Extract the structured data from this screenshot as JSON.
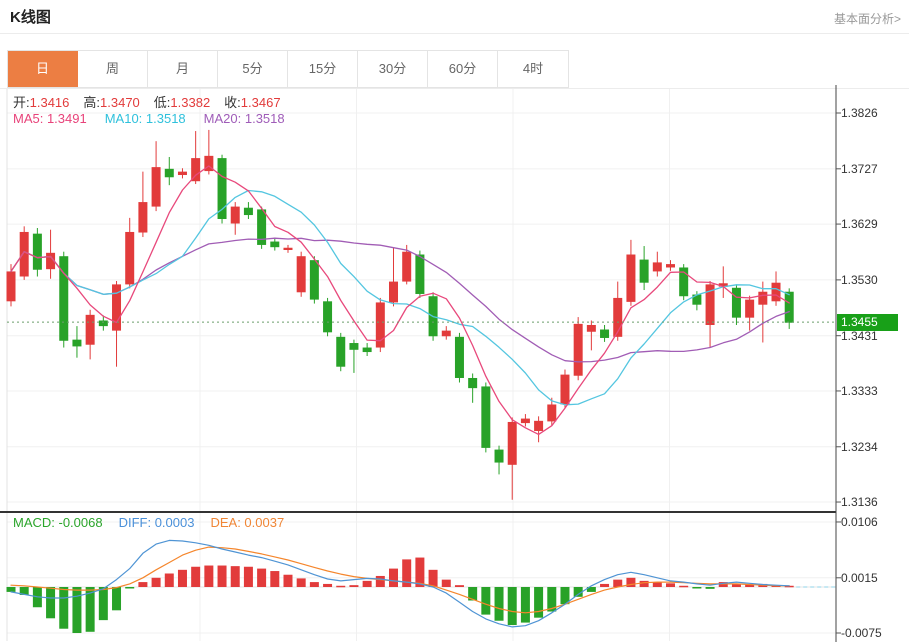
{
  "header": {
    "title": "K线图",
    "link_label": "基本面分析>"
  },
  "tabs": [
    {
      "name": "day",
      "label": "日",
      "active": true
    },
    {
      "name": "week",
      "label": "周",
      "active": false
    },
    {
      "name": "month",
      "label": "月",
      "active": false
    },
    {
      "name": "5min",
      "label": "5分",
      "active": false
    },
    {
      "name": "15min",
      "label": "15分",
      "active": false
    },
    {
      "name": "30min",
      "label": "30分",
      "active": false
    },
    {
      "name": "60min",
      "label": "60分",
      "active": false
    },
    {
      "name": "4hour",
      "label": "4时",
      "active": false
    }
  ],
  "legend": {
    "ohlc": [
      {
        "label": "开:",
        "value": "1.3416"
      },
      {
        "label": "高:",
        "value": "1.3470"
      },
      {
        "label": "低:",
        "value": "1.3382"
      },
      {
        "label": "收:",
        "value": "1.3467"
      }
    ],
    "ma": [
      {
        "text": "MA5: 1.3491"
      },
      {
        "text": "MA10: 1.3518"
      },
      {
        "text": "MA20: 1.3518"
      }
    ],
    "macd": [
      {
        "text": "MACD: -0.0068"
      },
      {
        "text": "DIFF: 0.0003"
      },
      {
        "text": "DEA: 0.0037"
      }
    ]
  },
  "colors": {
    "up": "#e23b3b",
    "down": "#28a228",
    "ma5": "#e8497c",
    "ma10": "#54c6e0",
    "ma20": "#a15db5",
    "diff": "#4f94d4",
    "dea": "#f5862c",
    "accent": "#ec7e43",
    "badge": "#18a018",
    "price_line": "#6b9e6b"
  },
  "chart_data": {
    "type": "candlestick+macd",
    "main": {
      "title": "K线图 daily candlesticks with MA5/MA10/MA20 overlays",
      "y_axis": [
        1.3826,
        1.3727,
        1.3629,
        1.353,
        1.3431,
        1.3333,
        1.3234,
        1.3136
      ],
      "ylim": [
        1.3118,
        1.3876
      ],
      "current_price": "1.3455",
      "current_price_value": 1.3455,
      "candles_format": "[open, high, low, close]",
      "candles": [
        [
          1.3492,
          1.3558,
          1.3483,
          1.3545
        ],
        [
          1.3536,
          1.3625,
          1.353,
          1.3615
        ],
        [
          1.3612,
          1.3622,
          1.3536,
          1.3548
        ],
        [
          1.3549,
          1.3619,
          1.3532,
          1.3578
        ],
        [
          1.3572,
          1.358,
          1.341,
          1.3422
        ],
        [
          1.3424,
          1.3448,
          1.3392,
          1.3412
        ],
        [
          1.3415,
          1.3477,
          1.3389,
          1.3468
        ],
        [
          1.3458,
          1.3467,
          1.344,
          1.3448
        ],
        [
          1.344,
          1.3528,
          1.3376,
          1.3522
        ],
        [
          1.3522,
          1.364,
          1.3515,
          1.3615
        ],
        [
          1.3614,
          1.3722,
          1.3606,
          1.3668
        ],
        [
          1.366,
          1.3776,
          1.3652,
          1.373
        ],
        [
          1.3727,
          1.3748,
          1.3698,
          1.3712
        ],
        [
          1.3716,
          1.3728,
          1.371,
          1.3722
        ],
        [
          1.3705,
          1.3794,
          1.37,
          1.3746
        ],
        [
          1.3723,
          1.3796,
          1.3717,
          1.375
        ],
        [
          1.3746,
          1.3752,
          1.363,
          1.3638
        ],
        [
          1.363,
          1.3668,
          1.361,
          1.366
        ],
        [
          1.3658,
          1.3668,
          1.3638,
          1.3645
        ],
        [
          1.3655,
          1.366,
          1.3585,
          1.3592
        ],
        [
          1.3598,
          1.3605,
          1.3582,
          1.3588
        ],
        [
          1.3583,
          1.3592,
          1.3578,
          1.3587
        ],
        [
          1.3508,
          1.358,
          1.35,
          1.3572
        ],
        [
          1.3565,
          1.3572,
          1.3488,
          1.3495
        ],
        [
          1.3492,
          1.3498,
          1.343,
          1.3437
        ],
        [
          1.3429,
          1.3436,
          1.3368,
          1.3376
        ],
        [
          1.3418,
          1.3424,
          1.3365,
          1.3406
        ],
        [
          1.341,
          1.3418,
          1.3395,
          1.3402
        ],
        [
          1.341,
          1.3498,
          1.3402,
          1.349
        ],
        [
          1.349,
          1.3587,
          1.3483,
          1.3527
        ],
        [
          1.3527,
          1.3592,
          1.3522,
          1.358
        ],
        [
          1.3575,
          1.3582,
          1.3498,
          1.3505
        ],
        [
          1.3501,
          1.3508,
          1.3422,
          1.343
        ],
        [
          1.343,
          1.3448,
          1.3424,
          1.344
        ],
        [
          1.3429,
          1.3436,
          1.3348,
          1.3356
        ],
        [
          1.3356,
          1.3364,
          1.3312,
          1.3338
        ],
        [
          1.3341,
          1.3348,
          1.3224,
          1.3232
        ],
        [
          1.3229,
          1.3236,
          1.3185,
          1.3206
        ],
        [
          1.3202,
          1.3286,
          1.314,
          1.3278
        ],
        [
          1.3276,
          1.3292,
          1.327,
          1.3284
        ],
        [
          1.3262,
          1.3288,
          1.3242,
          1.328
        ],
        [
          1.3279,
          1.3321,
          1.3272,
          1.3309
        ],
        [
          1.3309,
          1.3371,
          1.3302,
          1.3362
        ],
        [
          1.336,
          1.3464,
          1.3352,
          1.3452
        ],
        [
          1.3438,
          1.3458,
          1.3405,
          1.345
        ],
        [
          1.3442,
          1.345,
          1.342,
          1.3427
        ],
        [
          1.3429,
          1.3527,
          1.3422,
          1.3498
        ],
        [
          1.3491,
          1.3601,
          1.3484,
          1.3575
        ],
        [
          1.3566,
          1.359,
          1.3512,
          1.3525
        ],
        [
          1.3545,
          1.358,
          1.3536,
          1.3561
        ],
        [
          1.3552,
          1.3565,
          1.3546,
          1.3558
        ],
        [
          1.3552,
          1.3558,
          1.3494,
          1.3501
        ],
        [
          1.3504,
          1.351,
          1.3476,
          1.3486
        ],
        [
          1.345,
          1.3528,
          1.341,
          1.3522
        ],
        [
          1.3518,
          1.3554,
          1.3498,
          1.3524
        ],
        [
          1.3516,
          1.3522,
          1.345,
          1.3463
        ],
        [
          1.3463,
          1.3502,
          1.344,
          1.3495
        ],
        [
          1.3486,
          1.3527,
          1.3419,
          1.3509
        ],
        [
          1.3492,
          1.3545,
          1.3484,
          1.3525
        ],
        [
          1.3509,
          1.3515,
          1.3443,
          1.3454
        ]
      ],
      "moving_averages": [
        "MA5",
        "MA10",
        "MA20"
      ]
    },
    "macd": {
      "y_axis": [
        0.0106,
        0.0015,
        -0.0075
      ],
      "ylim": [
        -0.0088,
        0.0121
      ],
      "histogram": [
        -0.0008,
        -0.0013,
        -0.0033,
        -0.0051,
        -0.0068,
        -0.0075,
        -0.0073,
        -0.0054,
        -0.0038,
        -0.0002,
        0.0008,
        0.0015,
        0.0022,
        0.0028,
        0.0033,
        0.0035,
        0.0035,
        0.0034,
        0.0033,
        0.003,
        0.0026,
        0.002,
        0.0014,
        0.0008,
        0.0005,
        0.0002,
        0.0003,
        0.001,
        0.0018,
        0.003,
        0.0045,
        0.0048,
        0.0028,
        0.0012,
        0.0003,
        -0.0022,
        -0.0045,
        -0.0055,
        -0.0062,
        -0.0058,
        -0.005,
        -0.004,
        -0.0028,
        -0.0016,
        -0.0008,
        0.0005,
        0.0012,
        0.0015,
        0.001,
        0.0008,
        0.0006,
        0.0002,
        -0.0002,
        -0.0003,
        0.0008,
        0.0005,
        0.0004,
        0.0005,
        0.0003,
        0.0002
      ],
      "diff": [
        -0.0008,
        -0.0012,
        -0.0016,
        -0.0018,
        -0.0018,
        -0.0015,
        -0.001,
        -0.0003,
        0.0012,
        0.003,
        0.0055,
        0.007,
        0.0076,
        0.0075,
        0.0072,
        0.0068,
        0.0062,
        0.0057,
        0.0052,
        0.0048,
        0.0042,
        0.0036,
        0.0028,
        0.002,
        0.0013,
        0.001,
        0.0012,
        0.0014,
        0.0013,
        0.001,
        0.0008,
        0.0005,
        0.0,
        -0.001,
        -0.0025,
        -0.004,
        -0.0052,
        -0.006,
        -0.0065,
        -0.0063,
        -0.0055,
        -0.0042,
        -0.0028,
        -0.0012,
        0.0002,
        0.0012,
        0.002,
        0.0024,
        0.002,
        0.0015,
        0.001,
        0.0008,
        0.0005,
        0.0003,
        0.0006,
        0.0008,
        0.0006,
        0.0004,
        0.0003,
        0.0002
      ],
      "dea": [
        0.0003,
        0.0002,
        0.0,
        -0.0002,
        -0.0004,
        -0.0005,
        -0.0005,
        -0.0004,
        -0.0001,
        0.0005,
        0.0015,
        0.0028,
        0.004,
        0.0052,
        0.006,
        0.0065,
        0.0064,
        0.0062,
        0.0058,
        0.0054,
        0.0049,
        0.0044,
        0.0038,
        0.0032,
        0.0026,
        0.0021,
        0.0017,
        0.0014,
        0.0012,
        0.001,
        0.0008,
        0.0006,
        0.0002,
        -0.0005,
        -0.0012,
        -0.002,
        -0.0028,
        -0.0035,
        -0.004,
        -0.0042,
        -0.004,
        -0.0035,
        -0.0028,
        -0.002,
        -0.0012,
        -0.0005,
        0.0,
        0.0004,
        0.0007,
        0.0008,
        0.0008,
        0.0007,
        0.0006,
        0.0005,
        0.0005,
        0.0005,
        0.0004,
        0.0003,
        0.0002,
        0.0002
      ]
    }
  }
}
